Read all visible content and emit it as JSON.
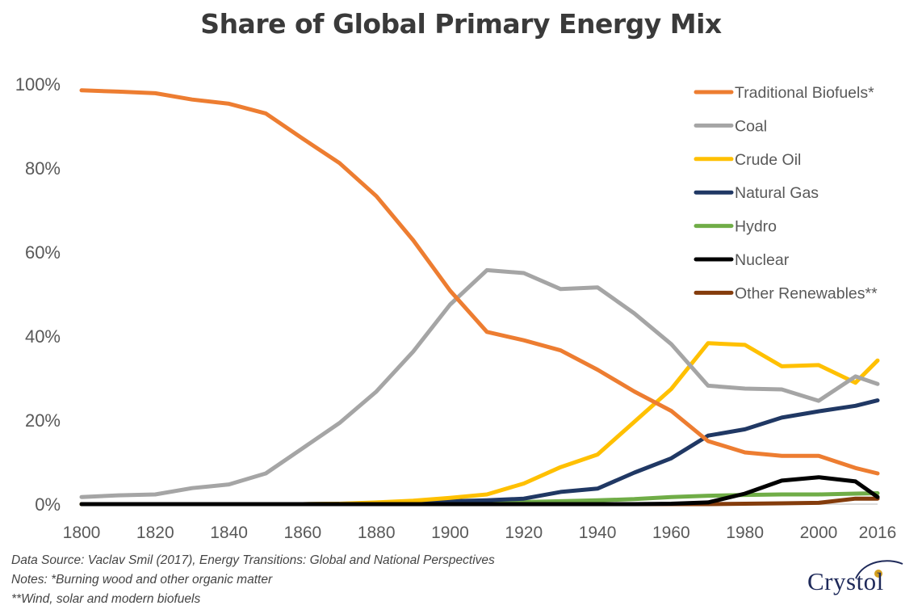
{
  "chart_data": {
    "type": "line",
    "title": "Share of Global Primary Energy Mix",
    "x": [
      1800,
      1810,
      1820,
      1830,
      1840,
      1850,
      1860,
      1870,
      1880,
      1890,
      1900,
      1910,
      1920,
      1930,
      1940,
      1950,
      1960,
      1970,
      1980,
      1990,
      2000,
      2010,
      2016
    ],
    "x_ticks": [
      "1800",
      "1820",
      "1840",
      "1860",
      "1880",
      "1900",
      "1920",
      "1940",
      "1960",
      "1980",
      "2000",
      "2016"
    ],
    "y_ticks": [
      "0%",
      "20%",
      "40%",
      "60%",
      "80%",
      "100%"
    ],
    "ylim": [
      0,
      100
    ],
    "xlim": [
      1800,
      2016
    ],
    "grid": false,
    "legend_position": "top-right",
    "series": [
      {
        "name": "Traditional Biofuels*",
        "color": "#ED7D31",
        "values": [
          98.5,
          98.2,
          97.8,
          96.3,
          95.3,
          93.0,
          87.0,
          81.2,
          73.3,
          62.8,
          50.8,
          41.0,
          39.0,
          36.6,
          32.0,
          26.8,
          22.2,
          15.0,
          12.3,
          11.5,
          11.5,
          8.6,
          7.3
        ]
      },
      {
        "name": "Coal",
        "color": "#A5A5A5",
        "values": [
          1.7,
          2.1,
          2.3,
          3.8,
          4.7,
          7.3,
          13.3,
          19.3,
          26.8,
          36.3,
          47.5,
          55.7,
          55.0,
          51.2,
          51.6,
          45.4,
          38.1,
          28.2,
          27.5,
          27.3,
          24.6,
          30.4,
          28.6
        ]
      },
      {
        "name": "Crude Oil",
        "color": "#FFC000",
        "values": [
          0,
          0,
          0,
          0,
          0,
          0,
          0,
          0.1,
          0.4,
          0.8,
          1.5,
          2.3,
          4.9,
          8.8,
          11.8,
          19.6,
          27.4,
          38.3,
          37.9,
          32.8,
          33.1,
          28.9,
          34.2
        ]
      },
      {
        "name": "Natural Gas",
        "color": "#203864",
        "values": [
          0,
          0,
          0,
          0,
          0,
          0,
          0,
          0.1,
          0.2,
          0.5,
          0.7,
          0.9,
          1.3,
          2.9,
          3.7,
          7.5,
          10.9,
          16.3,
          17.8,
          20.6,
          22.1,
          23.4,
          24.7
        ]
      },
      {
        "name": "Hydro",
        "color": "#70AD47",
        "values": [
          0,
          0,
          0,
          0,
          0,
          0,
          0,
          0,
          0,
          0,
          0.1,
          0.2,
          0.5,
          0.7,
          0.9,
          1.2,
          1.7,
          2.0,
          2.2,
          2.3,
          2.3,
          2.5,
          2.6
        ]
      },
      {
        "name": "Nuclear",
        "color": "#000000",
        "values": [
          0,
          0,
          0,
          0,
          0,
          0,
          0,
          0,
          0,
          0,
          0,
          0,
          0,
          0,
          0,
          0,
          0.1,
          0.4,
          2.5,
          5.6,
          6.4,
          5.4,
          1.7
        ]
      },
      {
        "name": "Other Renewables**",
        "color": "#843C0C",
        "values": [
          0,
          0,
          0,
          0,
          0,
          0,
          0,
          0,
          0,
          0,
          0,
          0,
          0,
          0,
          0,
          0,
          0,
          0,
          0.1,
          0.2,
          0.3,
          1.3,
          1.3
        ]
      }
    ]
  },
  "notes": {
    "source": "Data Source: Vaclav Smil (2017), Energy Transitions: Global and National Perspectives",
    "note1": "Notes: *Burning wood and other organic matter",
    "note2": "**Wind, solar and modern biofuels"
  },
  "logo": {
    "text": "Crystol",
    "color": "#1f2a5a"
  }
}
